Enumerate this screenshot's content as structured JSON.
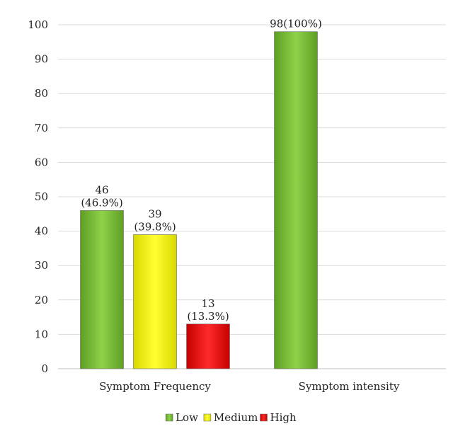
{
  "chart_data": {
    "type": "bar",
    "categories": [
      "Symptom Frequency",
      "Symptom intensity"
    ],
    "series": [
      {
        "name": "Low",
        "values": [
          46,
          98
        ],
        "labels": [
          "46\n(46.9%)",
          "98(100%)"
        ],
        "color": "#7fc23a"
      },
      {
        "name": "Medium",
        "values": [
          39,
          null
        ],
        "labels": [
          "39\n(39.8%)",
          ""
        ],
        "color": "#ffff00"
      },
      {
        "name": "High",
        "values": [
          13,
          null
        ],
        "labels": [
          "13\n(13.3%)",
          ""
        ],
        "color": "#ee1111"
      }
    ],
    "ylim": [
      0,
      100
    ],
    "yticks": [
      0,
      10,
      20,
      30,
      40,
      50,
      60,
      70,
      80,
      90,
      100
    ],
    "grid": true,
    "legend_position": "bottom"
  }
}
